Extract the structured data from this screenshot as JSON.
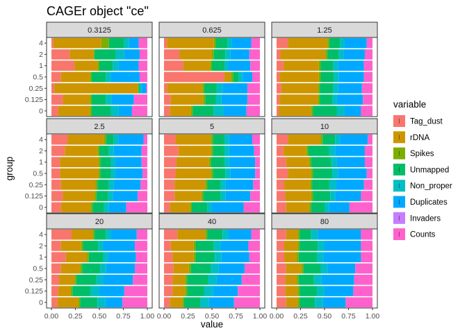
{
  "chart_data": {
    "type": "bar",
    "orientation": "horizontal",
    "stacked": true,
    "title": "CAGEr object \"ce\"",
    "xlabel": "value",
    "ylabel": "group",
    "xlim": [
      0,
      1
    ],
    "x_ticks": [
      "0.00",
      "0.25",
      "0.50",
      "0.75",
      "1.00"
    ],
    "groups": [
      "0",
      "0.125",
      "0.25",
      "0.5",
      "1",
      "2",
      "4"
    ],
    "legend": {
      "title": "variable",
      "position": "right",
      "items": [
        {
          "name": "Tag_dust",
          "color": "#F8766D"
        },
        {
          "name": "rDNA",
          "color": "#CD9600"
        },
        {
          "name": "Spikes",
          "color": "#7CAE00"
        },
        {
          "name": "Unmapped",
          "color": "#00BE67"
        },
        {
          "name": "Non_proper",
          "color": "#00BFC4"
        },
        {
          "name": "Duplicates",
          "color": "#00A9FF"
        },
        {
          "name": "Invaders",
          "color": "#C77CFF"
        },
        {
          "name": "Counts",
          "color": "#FF61CC"
        }
      ]
    },
    "panels": [
      {
        "label": "0.3125",
        "bars": {
          "4": [
            0.02,
            0.5,
            0.08,
            0.16,
            0.05,
            0.1,
            0,
            0.09
          ],
          "2": [
            0.19,
            0.25,
            0.01,
            0.22,
            0.09,
            0.16,
            0,
            0.08
          ],
          "1": [
            0.24,
            0.24,
            0.02,
            0.14,
            0.06,
            0.21,
            0,
            0.09
          ],
          "0.5": [
            0.1,
            0.3,
            0.02,
            0.15,
            0.05,
            0.3,
            0,
            0.08
          ],
          "0.25": [
            0.03,
            0.87,
            0.01,
            0.01,
            0.02,
            0.05,
            0,
            0.01
          ],
          "0.125": [
            0.12,
            0.28,
            0.02,
            0.15,
            0.06,
            0.23,
            0,
            0.14
          ],
          "0": [
            0.07,
            0.33,
            0.02,
            0.2,
            0.08,
            0.14,
            0,
            0.16
          ]
        }
      },
      {
        "label": "0.625",
        "bars": {
          "4": [
            0.03,
            0.49,
            0.02,
            0.12,
            0.05,
            0.2,
            0,
            0.09
          ],
          "2": [
            0.16,
            0.34,
            0.02,
            0.12,
            0.05,
            0.2,
            0,
            0.11
          ],
          "1": [
            0.2,
            0.28,
            0.02,
            0.13,
            0.04,
            0.23,
            0,
            0.1
          ],
          "0.5": [
            0.63,
            0.07,
            0.02,
            0.06,
            0.04,
            0.1,
            0,
            0.08
          ],
          "0.25": [
            0.03,
            0.37,
            0.02,
            0.13,
            0.06,
            0.26,
            0,
            0.13
          ],
          "0.125": [
            0.07,
            0.34,
            0.02,
            0.11,
            0.06,
            0.27,
            0,
            0.13
          ],
          "0": [
            0.06,
            0.22,
            0.02,
            0.22,
            0.1,
            0.24,
            0,
            0.14
          ]
        }
      },
      {
        "label": "1.25",
        "bars": {
          "4": [
            0.12,
            0.41,
            0.02,
            0.11,
            0.05,
            0.23,
            0,
            0.06
          ],
          "2": [
            0.04,
            0.47,
            0.02,
            0.12,
            0.05,
            0.22,
            0,
            0.08
          ],
          "1": [
            0.07,
            0.37,
            0.02,
            0.13,
            0.05,
            0.27,
            0,
            0.09
          ],
          "0.5": [
            0.03,
            0.41,
            0.02,
            0.14,
            0.05,
            0.26,
            0,
            0.09
          ],
          "0.25": [
            0.05,
            0.38,
            0.02,
            0.14,
            0.05,
            0.25,
            0,
            0.11
          ],
          "0.125": [
            0.03,
            0.4,
            0.02,
            0.13,
            0.05,
            0.27,
            0,
            0.1
          ],
          "0": [
            0.02,
            0.34,
            0.02,
            0.25,
            0.08,
            0.17,
            0,
            0.12
          ]
        }
      },
      {
        "label": "2.5",
        "bars": {
          "4": [
            0.17,
            0.38,
            0.02,
            0.08,
            0.05,
            0.26,
            0,
            0.04
          ],
          "2": [
            0.14,
            0.34,
            0.02,
            0.1,
            0.05,
            0.29,
            0,
            0.06
          ],
          "1": [
            0.09,
            0.4,
            0.02,
            0.11,
            0.05,
            0.27,
            0,
            0.06
          ],
          "0.5": [
            0.09,
            0.4,
            0.02,
            0.11,
            0.05,
            0.28,
            0,
            0.05
          ],
          "0.25": [
            0.1,
            0.36,
            0.02,
            0.12,
            0.05,
            0.28,
            0,
            0.07
          ],
          "0.125": [
            0.12,
            0.33,
            0.02,
            0.12,
            0.05,
            0.26,
            0,
            0.1
          ],
          "0": [
            0.1,
            0.31,
            0.02,
            0.12,
            0.05,
            0.18,
            0,
            0.22
          ]
        }
      },
      {
        "label": "5",
        "bars": {
          "4": [
            0.12,
            0.37,
            0.02,
            0.12,
            0.05,
            0.24,
            0,
            0.08
          ],
          "2": [
            0.15,
            0.34,
            0.02,
            0.12,
            0.05,
            0.26,
            0,
            0.06
          ],
          "1": [
            0.13,
            0.34,
            0.02,
            0.14,
            0.05,
            0.27,
            0,
            0.05
          ],
          "0.5": [
            0.12,
            0.37,
            0.02,
            0.13,
            0.05,
            0.26,
            0,
            0.05
          ],
          "0.25": [
            0.11,
            0.32,
            0.02,
            0.14,
            0.05,
            0.29,
            0,
            0.07
          ],
          "0.125": [
            0.11,
            0.28,
            0.02,
            0.18,
            0.05,
            0.26,
            0,
            0.1
          ],
          "0": [
            0.06,
            0.21,
            0.02,
            0.16,
            0.05,
            0.33,
            0,
            0.17
          ]
        }
      },
      {
        "label": "10",
        "bars": {
          "4": [
            0.12,
            0.34,
            0.02,
            0.13,
            0.05,
            0.29,
            0,
            0.05
          ],
          "2": [
            0.07,
            0.24,
            0.02,
            0.22,
            0.06,
            0.31,
            0,
            0.08
          ],
          "1": [
            0.1,
            0.24,
            0.02,
            0.21,
            0.06,
            0.29,
            0,
            0.08
          ],
          "0.5": [
            0.12,
            0.24,
            0.02,
            0.2,
            0.06,
            0.3,
            0,
            0.06
          ],
          "0.25": [
            0.08,
            0.27,
            0.02,
            0.18,
            0.07,
            0.29,
            0,
            0.09
          ],
          "0.125": [
            0.09,
            0.27,
            0.02,
            0.18,
            0.05,
            0.27,
            0,
            0.12
          ],
          "0": [
            0.1,
            0.24,
            0.02,
            0.14,
            0.05,
            0.21,
            0,
            0.24
          ]
        }
      },
      {
        "label": "20",
        "bars": {
          "4": [
            0.21,
            0.22,
            0.02,
            0.12,
            0.05,
            0.27,
            0,
            0.11
          ],
          "2": [
            0.1,
            0.21,
            0.02,
            0.16,
            0.05,
            0.33,
            0,
            0.13
          ],
          "1": [
            0.15,
            0.22,
            0.02,
            0.15,
            0.05,
            0.29,
            0,
            0.12
          ],
          "0.5": [
            0.1,
            0.2,
            0.02,
            0.19,
            0.06,
            0.3,
            0,
            0.13
          ],
          "0.25": [
            0.08,
            0.16,
            0.02,
            0.21,
            0.07,
            0.31,
            0,
            0.15
          ],
          "0.125": [
            0.07,
            0.13,
            0.02,
            0.19,
            0.09,
            0.26,
            0,
            0.24
          ],
          "0": [
            0.06,
            0.22,
            0.02,
            0.18,
            0.08,
            0.18,
            0,
            0.26
          ]
        }
      },
      {
        "label": "40",
        "bars": {
          "4": [
            0.14,
            0.29,
            0.02,
            0.16,
            0.06,
            0.24,
            0,
            0.09
          ],
          "2": [
            0.07,
            0.24,
            0.02,
            0.19,
            0.07,
            0.29,
            0,
            0.12
          ],
          "1": [
            0.09,
            0.22,
            0.02,
            0.2,
            0.07,
            0.29,
            0,
            0.11
          ],
          "0.5": [
            0.1,
            0.16,
            0.02,
            0.21,
            0.08,
            0.27,
            0,
            0.16
          ],
          "0.25": [
            0.09,
            0.13,
            0.02,
            0.22,
            0.09,
            0.26,
            0,
            0.19
          ],
          "0.125": [
            0.09,
            0.13,
            0.02,
            0.18,
            0.09,
            0.26,
            0,
            0.23
          ],
          "0": [
            0.06,
            0.13,
            0.02,
            0.17,
            0.09,
            0.26,
            0,
            0.27
          ]
        }
      },
      {
        "label": "80",
        "bars": {
          "4": [
            0.1,
            0.12,
            0.02,
            0.12,
            0.07,
            0.45,
            0,
            0.12
          ],
          "2": [
            0.08,
            0.14,
            0.02,
            0.19,
            0.07,
            0.38,
            0,
            0.12
          ],
          "1": [
            0.08,
            0.13,
            0.02,
            0.19,
            0.07,
            0.39,
            0,
            0.12
          ],
          "0.5": [
            0.1,
            0.16,
            0.02,
            0.18,
            0.07,
            0.29,
            0,
            0.18
          ],
          "0.25": [
            0.09,
            0.12,
            0.02,
            0.16,
            0.08,
            0.34,
            0,
            0.19
          ],
          "0.125": [
            0.09,
            0.13,
            0.02,
            0.18,
            0.08,
            0.3,
            0,
            0.2
          ],
          "0": [
            0.1,
            0.12,
            0.02,
            0.16,
            0.08,
            0.24,
            0,
            0.28
          ]
        }
      }
    ]
  }
}
